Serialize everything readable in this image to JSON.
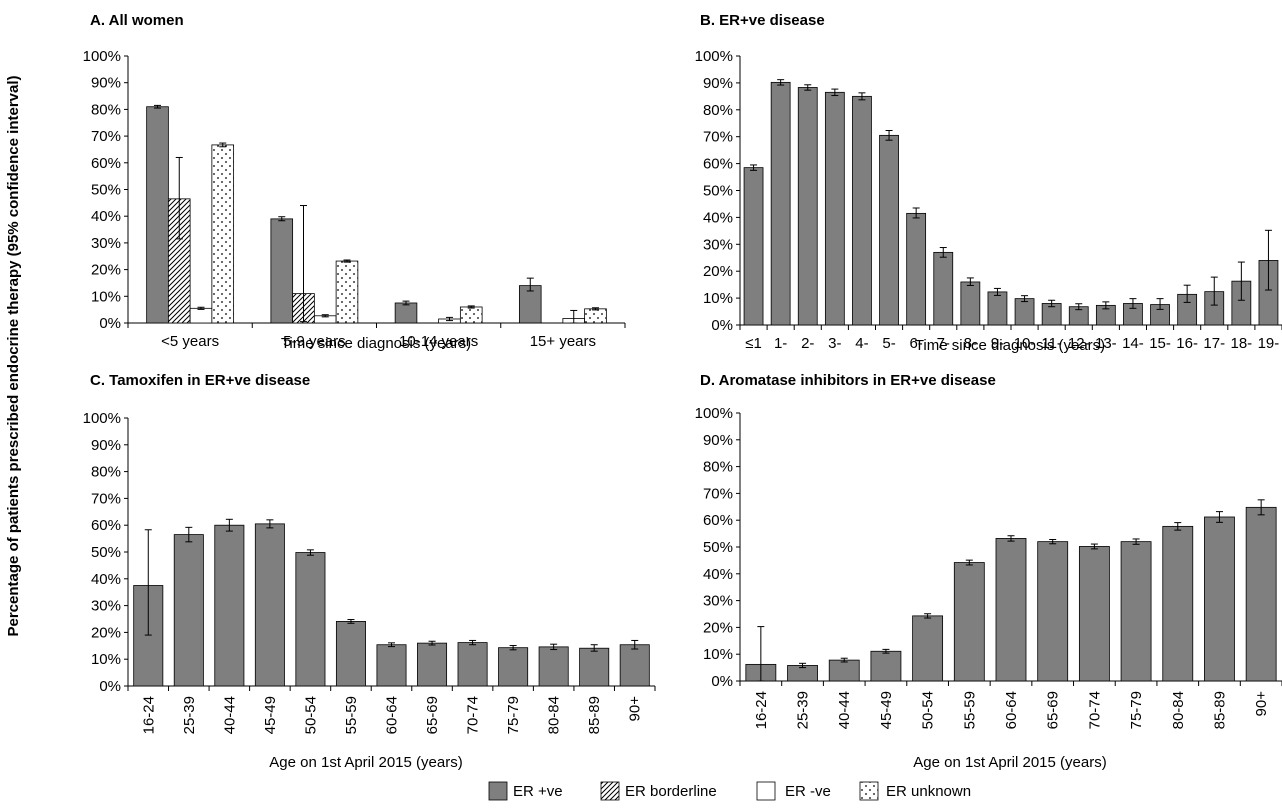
{
  "y_axis_label": "Percentage of patients prescribed endocrine therapy (95% confidence interval)",
  "legend": [
    {
      "label": "ER +ve",
      "pattern": "solid"
    },
    {
      "label": "ER borderline",
      "pattern": "hatch"
    },
    {
      "label": "ER -ve",
      "pattern": "empty"
    },
    {
      "label": "ER unknown",
      "pattern": "dots"
    }
  ],
  "colors": {
    "bar": "#7f7f7f",
    "stroke": "#000000"
  },
  "chart_data": [
    {
      "type": "bar",
      "title": "A. All women",
      "xlabel": "Time since diagnosis (years)",
      "ylim": [
        0,
        100
      ],
      "yticks": [
        "0%",
        "10%",
        "20%",
        "30%",
        "40%",
        "50%",
        "60%",
        "70%",
        "80%",
        "90%",
        "100%"
      ],
      "categories": [
        "<5 years",
        "5-9 years",
        "10-14 years",
        "15+ years"
      ],
      "series": [
        {
          "name": "ER +ve",
          "pattern": "solid",
          "values": [
            81,
            39,
            7.5,
            14
          ],
          "ci_low": [
            80.5,
            38.3,
            6.8,
            12
          ],
          "ci_high": [
            81.5,
            39.8,
            8.2,
            16.8
          ]
        },
        {
          "name": "ER borderline",
          "pattern": "hatch",
          "values": [
            46.5,
            11,
            null,
            null
          ],
          "ci_low": [
            31.5,
            0.5,
            null,
            null
          ],
          "ci_high": [
            62,
            44,
            null,
            null
          ]
        },
        {
          "name": "ER -ve",
          "pattern": "empty",
          "values": [
            5.5,
            2.7,
            1.5,
            1.7
          ],
          "ci_low": [
            5.1,
            2.3,
            0.9,
            0
          ],
          "ci_high": [
            5.9,
            3.1,
            2.1,
            4.7
          ]
        },
        {
          "name": "ER unknown",
          "pattern": "dots",
          "values": [
            66.7,
            23.2,
            6,
            5.3
          ],
          "ci_low": [
            66,
            22.8,
            5.6,
            4.9
          ],
          "ci_high": [
            67.4,
            23.6,
            6.4,
            5.7
          ]
        }
      ]
    },
    {
      "type": "bar",
      "title": "B. ER+ve disease",
      "xlabel": "Time since diagnosis (years)",
      "ylim": [
        0,
        100
      ],
      "yticks": [
        "0%",
        "10%",
        "20%",
        "30%",
        "40%",
        "50%",
        "60%",
        "70%",
        "80%",
        "90%",
        "100%"
      ],
      "categories": [
        "≤1",
        "1-",
        "2-",
        "3-",
        "4-",
        "5-",
        "6-",
        "7-",
        "8-",
        "9-",
        "10-",
        "11-",
        "12-",
        "13-",
        "14-",
        "15-",
        "16-",
        "17-",
        "18-",
        "19-"
      ],
      "series": [
        {
          "name": "ER +ve",
          "pattern": "solid",
          "values": [
            58.5,
            90.2,
            88.3,
            86.5,
            85,
            70.5,
            41.5,
            27,
            16,
            12.3,
            9.8,
            8,
            6.8,
            7.3,
            8,
            7.6,
            11.4,
            12.4,
            16.3,
            24
          ],
          "ci_low": [
            57.5,
            89.2,
            87.3,
            85.3,
            83.7,
            68.7,
            39.8,
            25.2,
            14.7,
            11,
            8.7,
            6.8,
            5.7,
            6,
            6.2,
            5.8,
            8.4,
            7.4,
            9.2,
            13
          ],
          "ci_high": [
            59.5,
            91.2,
            89.3,
            87.7,
            86.3,
            72.3,
            43.5,
            28.8,
            17.5,
            13.6,
            10.9,
            9.2,
            7.9,
            8.6,
            9.8,
            9.8,
            14.8,
            17.8,
            23.4,
            35.2
          ]
        }
      ]
    },
    {
      "type": "bar",
      "title": "C. Tamoxifen in ER+ve disease",
      "xlabel": "Age on 1st April 2015 (years)",
      "ylim": [
        0,
        100
      ],
      "yticks": [
        "0%",
        "10%",
        "20%",
        "30%",
        "40%",
        "50%",
        "60%",
        "70%",
        "80%",
        "90%",
        "100%"
      ],
      "categories": [
        "16-24",
        "25-39",
        "40-44",
        "45-49",
        "50-54",
        "55-59",
        "60-64",
        "65-69",
        "70-74",
        "75-79",
        "80-84",
        "85-89",
        "90+"
      ],
      "series": [
        {
          "name": "ER +ve",
          "pattern": "solid",
          "values": [
            37.5,
            56.5,
            60,
            60.5,
            49.8,
            24.1,
            15.4,
            16,
            16.2,
            14.3,
            14.6,
            14.1,
            15.4
          ],
          "ci_low": [
            19,
            53.8,
            57.8,
            59,
            48.8,
            23.4,
            14.7,
            15.3,
            15.4,
            13.5,
            13.6,
            13,
            13.8
          ],
          "ci_high": [
            58.3,
            59.2,
            62.2,
            62,
            50.8,
            24.8,
            16.1,
            16.7,
            17,
            15.1,
            15.6,
            15.4,
            17
          ]
        }
      ]
    },
    {
      "type": "bar",
      "title": "D. Aromatase inhibitors in ER+ve disease",
      "xlabel": "Age on 1st April 2015 (years)",
      "ylim": [
        0,
        100
      ],
      "yticks": [
        "0%",
        "10%",
        "20%",
        "30%",
        "40%",
        "50%",
        "60%",
        "70%",
        "80%",
        "90%",
        "100%"
      ],
      "categories": [
        "16-24",
        "25-39",
        "40-44",
        "45-49",
        "50-54",
        "55-59",
        "60-64",
        "65-69",
        "70-74",
        "75-79",
        "80-84",
        "85-89",
        "90+"
      ],
      "series": [
        {
          "name": "ER +ve",
          "pattern": "solid",
          "values": [
            6.2,
            5.8,
            7.8,
            11.1,
            24.3,
            44.2,
            53.2,
            52,
            50.2,
            52,
            57.7,
            61.2,
            64.8
          ],
          "ci_low": [
            0,
            5,
            7.1,
            10.4,
            23.5,
            43.3,
            52.2,
            51.2,
            49.3,
            51,
            56.3,
            59.2,
            62
          ],
          "ci_high": [
            20.3,
            6.6,
            8.5,
            11.8,
            25.1,
            45.1,
            54.2,
            52.8,
            51.1,
            53,
            59.1,
            63.2,
            67.6
          ]
        }
      ]
    }
  ]
}
